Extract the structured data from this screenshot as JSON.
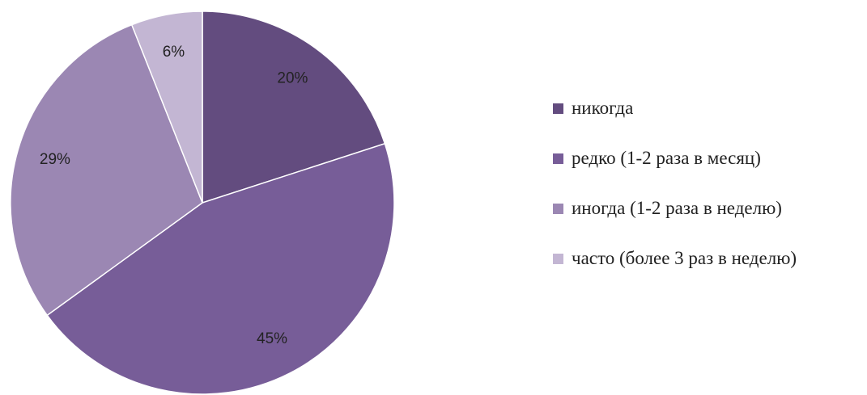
{
  "chart_data": {
    "type": "pie",
    "categories": [
      "никогда",
      "редко (1-2 раза в месяц)",
      "иногда (1-2 раза в неделю)",
      "часто (более 3 раз в неделю)"
    ],
    "values": [
      20,
      45,
      29,
      6
    ],
    "value_labels": [
      "20%",
      "45%",
      "29%",
      "6%"
    ],
    "colors": [
      "#634c7f",
      "#775d98",
      "#9b87b3",
      "#c3b6d3"
    ],
    "legend": "right"
  }
}
